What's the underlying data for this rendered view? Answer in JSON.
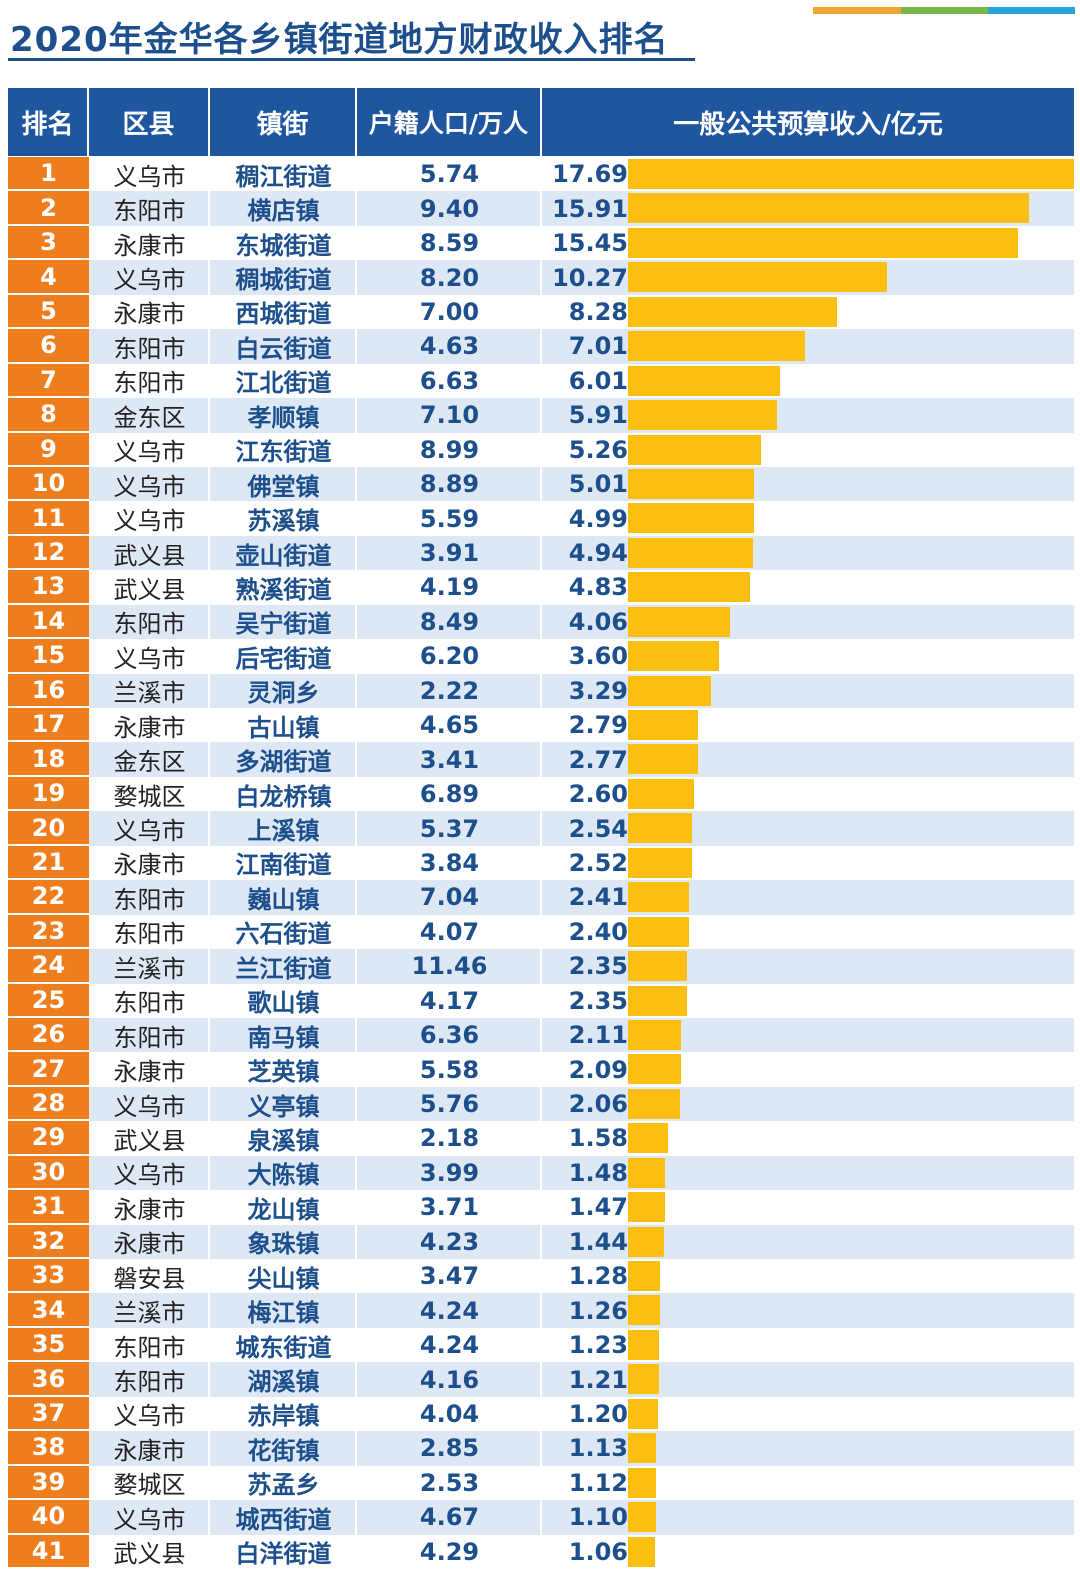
{
  "title": "2020年金华各乡镇街道地方财政收入排名",
  "colors": {
    "title": "#1c4f8c",
    "header_bg": "#1f56a0",
    "rank_bg": "#ee7d1e",
    "bar": "#fbbf12",
    "row_alt": "#dde8f4",
    "deco": [
      "#f0a431",
      "#7ab648",
      "#29a3dd"
    ]
  },
  "header": {
    "rank": "排名",
    "county": "区县",
    "town": "镇街",
    "population": "户籍人口/万人",
    "revenue": "一般公共预算收入/亿元"
  },
  "chart_data": {
    "type": "bar",
    "orientation": "horizontal",
    "title": "2020年金华各乡镇街道地方财政收入排名",
    "columns": [
      "排名",
      "区县",
      "镇街",
      "户籍人口/万人",
      "一般公共预算收入/亿元"
    ],
    "rows": [
      {
        "rank": "1",
        "county": "义乌市",
        "town": "稠江街道",
        "population": "5.74",
        "revenue": 17.69
      },
      {
        "rank": "2",
        "county": "东阳市",
        "town": "横店镇",
        "population": "9.40",
        "revenue": 15.91
      },
      {
        "rank": "3",
        "county": "永康市",
        "town": "东城街道",
        "population": "8.59",
        "revenue": 15.45
      },
      {
        "rank": "4",
        "county": "义乌市",
        "town": "稠城街道",
        "population": "8.20",
        "revenue": 10.27
      },
      {
        "rank": "5",
        "county": "永康市",
        "town": "西城街道",
        "population": "7.00",
        "revenue": 8.28
      },
      {
        "rank": "6",
        "county": "东阳市",
        "town": "白云街道",
        "population": "4.63",
        "revenue": 7.01
      },
      {
        "rank": "7",
        "county": "东阳市",
        "town": "江北街道",
        "population": "6.63",
        "revenue": 6.01
      },
      {
        "rank": "8",
        "county": "金东区",
        "town": "孝顺镇",
        "population": "7.10",
        "revenue": 5.91
      },
      {
        "rank": "9",
        "county": "义乌市",
        "town": "江东街道",
        "population": "8.99",
        "revenue": 5.26
      },
      {
        "rank": "10",
        "county": "义乌市",
        "town": "佛堂镇",
        "population": "8.89",
        "revenue": 5.01
      },
      {
        "rank": "11",
        "county": "义乌市",
        "town": "苏溪镇",
        "population": "5.59",
        "revenue": 4.99
      },
      {
        "rank": "12",
        "county": "武义县",
        "town": "壶山街道",
        "population": "3.91",
        "revenue": 4.94
      },
      {
        "rank": "13",
        "county": "武义县",
        "town": "熟溪街道",
        "population": "4.19",
        "revenue": 4.83
      },
      {
        "rank": "14",
        "county": "东阳市",
        "town": "吴宁街道",
        "population": "8.49",
        "revenue": 4.06
      },
      {
        "rank": "15",
        "county": "义乌市",
        "town": "后宅街道",
        "population": "6.20",
        "revenue": 3.6
      },
      {
        "rank": "16",
        "county": "兰溪市",
        "town": "灵洞乡",
        "population": "2.22",
        "revenue": 3.29
      },
      {
        "rank": "17",
        "county": "永康市",
        "town": "古山镇",
        "population": "4.65",
        "revenue": 2.79
      },
      {
        "rank": "18",
        "county": "金东区",
        "town": "多湖街道",
        "population": "3.41",
        "revenue": 2.77
      },
      {
        "rank": "19",
        "county": "婺城区",
        "town": "白龙桥镇",
        "population": "6.89",
        "revenue": 2.6
      },
      {
        "rank": "20",
        "county": "义乌市",
        "town": "上溪镇",
        "population": "5.37",
        "revenue": 2.54
      },
      {
        "rank": "21",
        "county": "永康市",
        "town": "江南街道",
        "population": "3.84",
        "revenue": 2.52
      },
      {
        "rank": "22",
        "county": "东阳市",
        "town": "巍山镇",
        "population": "7.04",
        "revenue": 2.41
      },
      {
        "rank": "23",
        "county": "东阳市",
        "town": "六石街道",
        "population": "4.07",
        "revenue": 2.4
      },
      {
        "rank": "24",
        "county": "兰溪市",
        "town": "兰江街道",
        "population": "11.46",
        "revenue": 2.35
      },
      {
        "rank": "25",
        "county": "东阳市",
        "town": "歌山镇",
        "population": "4.17",
        "revenue": 2.35
      },
      {
        "rank": "26",
        "county": "东阳市",
        "town": "南马镇",
        "population": "6.36",
        "revenue": 2.11
      },
      {
        "rank": "27",
        "county": "永康市",
        "town": "芝英镇",
        "population": "5.58",
        "revenue": 2.09
      },
      {
        "rank": "28",
        "county": "义乌市",
        "town": "义亭镇",
        "population": "5.76",
        "revenue": 2.06
      },
      {
        "rank": "29",
        "county": "武义县",
        "town": "泉溪镇",
        "population": "2.18",
        "revenue": 1.58
      },
      {
        "rank": "30",
        "county": "义乌市",
        "town": "大陈镇",
        "population": "3.99",
        "revenue": 1.48
      },
      {
        "rank": "31",
        "county": "永康市",
        "town": "龙山镇",
        "population": "3.71",
        "revenue": 1.47
      },
      {
        "rank": "32",
        "county": "永康市",
        "town": "象珠镇",
        "population": "4.23",
        "revenue": 1.44
      },
      {
        "rank": "33",
        "county": "磐安县",
        "town": "尖山镇",
        "population": "3.47",
        "revenue": 1.28
      },
      {
        "rank": "34",
        "county": "兰溪市",
        "town": "梅江镇",
        "population": "4.24",
        "revenue": 1.26
      },
      {
        "rank": "35",
        "county": "东阳市",
        "town": "城东街道",
        "population": "4.24",
        "revenue": 1.23
      },
      {
        "rank": "36",
        "county": "东阳市",
        "town": "湖溪镇",
        "population": "4.16",
        "revenue": 1.21
      },
      {
        "rank": "37",
        "county": "义乌市",
        "town": "赤岸镇",
        "population": "4.04",
        "revenue": 1.2
      },
      {
        "rank": "38",
        "county": "永康市",
        "town": "花街镇",
        "population": "2.85",
        "revenue": 1.13
      },
      {
        "rank": "39",
        "county": "婺城区",
        "town": "苏孟乡",
        "population": "2.53",
        "revenue": 1.12
      },
      {
        "rank": "40",
        "county": "义乌市",
        "town": "城西街道",
        "population": "4.67",
        "revenue": 1.1
      },
      {
        "rank": "41",
        "county": "武义县",
        "town": "白洋街道",
        "population": "4.29",
        "revenue": 1.06
      }
    ]
  }
}
